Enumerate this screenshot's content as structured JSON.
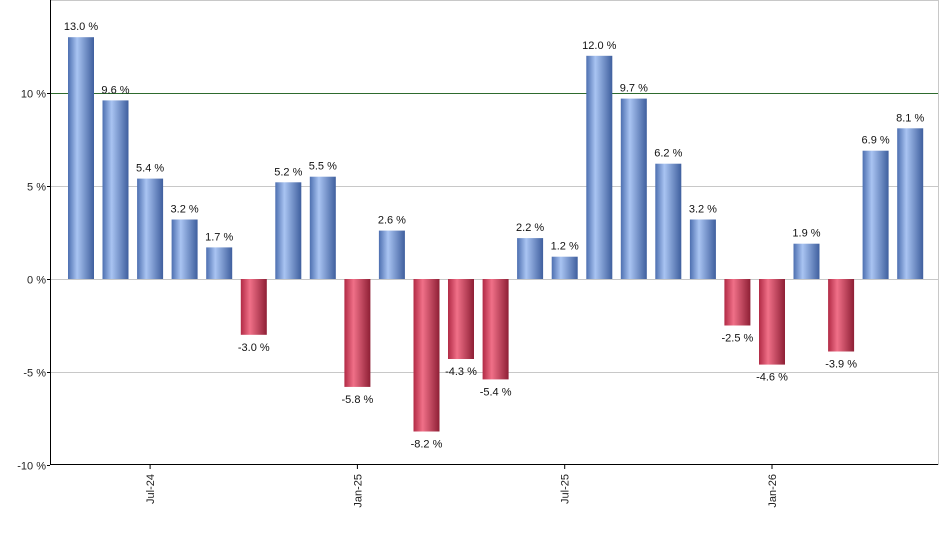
{
  "chart_data": {
    "type": "bar",
    "title": "",
    "xlabel": "",
    "ylabel": "",
    "ylim": [
      -10,
      15
    ],
    "y_ticks": [
      -10,
      -5,
      0,
      5,
      10
    ],
    "y_tick_labels": [
      "-10 %",
      "-5 %",
      "0 %",
      "5 %",
      "10 %"
    ],
    "reference_line": {
      "value": 10,
      "color": "#2e6b2e"
    },
    "x_tick_labels": [
      {
        "label": "Jul-24",
        "index": 2
      },
      {
        "label": "Jan-25",
        "index": 8
      },
      {
        "label": "Jul-25",
        "index": 14
      },
      {
        "label": "Jan-26",
        "index": 20
      }
    ],
    "values": [
      13.0,
      9.6,
      5.4,
      3.2,
      1.7,
      -3.0,
      5.2,
      5.5,
      -5.8,
      2.6,
      -8.2,
      -4.3,
      -5.4,
      2.2,
      1.2,
      12.0,
      9.7,
      6.2,
      3.2,
      -2.5,
      -4.6,
      1.9,
      -3.9,
      6.9,
      8.1
    ],
    "value_labels": [
      "13.0 %",
      "9.6 %",
      "5.4 %",
      "3.2 %",
      "1.7 %",
      "-3.0 %",
      "5.2 %",
      "5.5 %",
      "-5.8 %",
      "2.6 %",
      "-8.2 %",
      "-4.3 %",
      "-5.4 %",
      "2.2 %",
      "1.2 %",
      "12.0 %",
      "9.7 %",
      "6.2 %",
      "3.2 %",
      "-2.5 %",
      "-4.6 %",
      "1.9 %",
      "-3.9 %",
      "6.9 %",
      "8.1 %"
    ],
    "colors": {
      "positive": "#6e95d6",
      "negative": "#c7334f",
      "grid": "#c8c8c8",
      "axis": "#000000"
    },
    "grid": true
  }
}
